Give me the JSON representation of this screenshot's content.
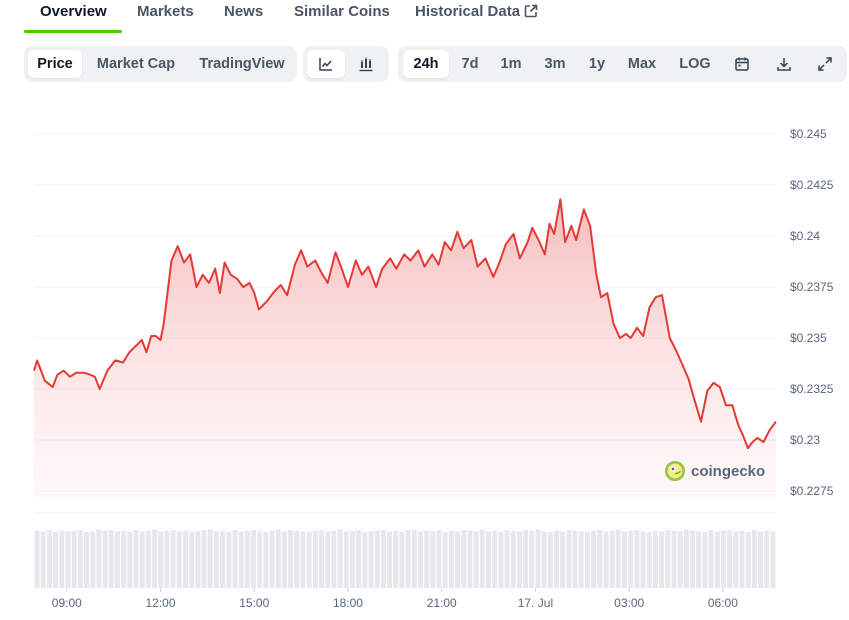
{
  "tabs": [
    {
      "label": "Overview",
      "active": true
    },
    {
      "label": "Markets"
    },
    {
      "label": "News"
    },
    {
      "label": "Similar Coins"
    },
    {
      "label": "Historical Data",
      "icon": "external-link-icon"
    }
  ],
  "toolbar": {
    "chart_types": [
      {
        "label": "Price",
        "selected": true
      },
      {
        "label": "Market Cap"
      },
      {
        "label": "TradingView"
      }
    ],
    "views": [
      {
        "icon": "line-chart-icon",
        "selected": true
      },
      {
        "icon": "candlestick-chart-icon"
      }
    ],
    "ranges": [
      {
        "label": "24h",
        "selected": true
      },
      {
        "label": "7d"
      },
      {
        "label": "1m"
      },
      {
        "label": "3m"
      },
      {
        "label": "1y"
      },
      {
        "label": "Max"
      },
      {
        "label": "LOG"
      }
    ],
    "actions": [
      {
        "icon": "calendar-icon"
      },
      {
        "icon": "download-icon"
      },
      {
        "icon": "expand-icon"
      }
    ]
  },
  "watermark": {
    "text": "coingecko",
    "icon": "coingecko-logo-icon"
  },
  "colors": {
    "line": "#e53935",
    "accent": "#4bcc00",
    "fill_top": "#f4a6a6"
  },
  "chart_data": {
    "type": "area",
    "x_ticks": [
      {
        "label": "09:00",
        "t": 9
      },
      {
        "label": "12:00",
        "t": 12
      },
      {
        "label": "15:00",
        "t": 15
      },
      {
        "label": "18:00",
        "t": 18
      },
      {
        "label": "21:00",
        "t": 21
      },
      {
        "label": "17. Jul",
        "t": 24
      },
      {
        "label": "03:00",
        "t": 27
      },
      {
        "label": "06:00",
        "t": 30
      }
    ],
    "y_ticks": [
      {
        "label": "$0.245",
        "v": 0.245
      },
      {
        "label": "$0.2425",
        "v": 0.2425
      },
      {
        "label": "$0.24",
        "v": 0.24
      },
      {
        "label": "$0.2375",
        "v": 0.2375
      },
      {
        "label": "$0.235",
        "v": 0.235
      },
      {
        "label": "$0.2325",
        "v": 0.2325
      },
      {
        "label": "$0.23",
        "v": 0.23
      },
      {
        "label": "$0.2275",
        "v": 0.2275
      }
    ],
    "xlim": [
      7.95,
      31.7
    ],
    "ylim": [
      0.2275,
      0.245
    ],
    "grid": true,
    "series": [
      {
        "x": [
          7.95,
          8.05,
          8.3,
          8.55,
          8.7,
          8.9,
          9.1,
          9.3,
          9.55,
          9.75,
          9.9,
          10.05,
          10.3,
          10.55,
          10.8,
          11.0,
          11.2,
          11.4,
          11.55,
          11.7,
          11.85,
          12.0,
          12.1,
          12.35,
          12.55,
          12.75,
          12.95,
          13.15,
          13.35,
          13.55,
          13.75,
          13.9,
          14.05,
          14.25,
          14.45,
          14.65,
          14.85,
          15.0,
          15.15,
          15.4,
          15.65,
          15.85,
          16.05,
          16.3,
          16.5,
          16.7,
          16.95,
          17.15,
          17.35,
          17.6,
          17.8,
          18.0,
          18.25,
          18.45,
          18.65,
          18.9,
          19.1,
          19.35,
          19.55,
          19.8,
          20.0,
          20.25,
          20.45,
          20.7,
          20.9,
          21.1,
          21.3,
          21.5,
          21.7,
          21.95,
          22.15,
          22.4,
          22.65,
          22.85,
          23.05,
          23.3,
          23.5,
          23.75,
          23.9,
          24.1,
          24.3,
          24.45,
          24.6,
          24.8,
          24.95,
          25.15,
          25.3,
          25.55,
          25.75,
          25.95,
          26.1,
          26.3,
          26.5,
          26.7,
          26.9,
          27.05,
          27.25,
          27.45,
          27.65,
          27.85,
          28.05,
          28.3,
          28.5,
          28.7,
          28.9,
          29.1,
          29.3,
          29.5,
          29.7,
          29.9,
          30.1,
          30.3,
          30.5,
          30.65,
          30.8,
          30.95,
          31.1,
          31.3,
          31.5,
          31.7
        ],
        "y": [
          0.2334,
          0.2339,
          0.2329,
          0.2326,
          0.2332,
          0.2334,
          0.2331,
          0.2333,
          0.2333,
          0.2332,
          0.2331,
          0.2325,
          0.2334,
          0.2339,
          0.2338,
          0.2343,
          0.2346,
          0.2349,
          0.2343,
          0.2351,
          0.2351,
          0.2349,
          0.2357,
          0.2388,
          0.2395,
          0.2387,
          0.2391,
          0.2375,
          0.2381,
          0.2377,
          0.2384,
          0.2372,
          0.2387,
          0.2381,
          0.2379,
          0.2375,
          0.2377,
          0.2372,
          0.2364,
          0.2368,
          0.2373,
          0.2376,
          0.2371,
          0.2386,
          0.2393,
          0.2385,
          0.2388,
          0.2382,
          0.2377,
          0.2392,
          0.2384,
          0.2375,
          0.2388,
          0.2381,
          0.2385,
          0.2375,
          0.2384,
          0.2389,
          0.2384,
          0.2391,
          0.2388,
          0.2393,
          0.2385,
          0.2391,
          0.2386,
          0.2397,
          0.2393,
          0.2402,
          0.2394,
          0.2398,
          0.2385,
          0.2389,
          0.238,
          0.2387,
          0.2396,
          0.2401,
          0.2389,
          0.2397,
          0.2404,
          0.2398,
          0.2391,
          0.2406,
          0.2401,
          0.2418,
          0.2397,
          0.2405,
          0.2398,
          0.2413,
          0.2405,
          0.2381,
          0.237,
          0.2372,
          0.2357,
          0.235,
          0.2352,
          0.235,
          0.2355,
          0.2351,
          0.2365,
          0.237,
          0.2371,
          0.235,
          0.2344,
          0.2337,
          0.233,
          0.2319,
          0.2309,
          0.2324,
          0.2328,
          0.2326,
          0.2317,
          0.2317,
          0.2307,
          0.2302,
          0.2296,
          0.2299,
          0.2301,
          0.2299,
          0.2305,
          0.2309
        ],
        "volumes": [
          0.91,
          0.9,
          0.92,
          0.89,
          0.91,
          0.9,
          0.91,
          0.92,
          0.89,
          0.9,
          0.93,
          0.91,
          0.92,
          0.9,
          0.91,
          0.89,
          0.92,
          0.9,
          0.91,
          0.93,
          0.9,
          0.91,
          0.92,
          0.9,
          0.91,
          0.89,
          0.9,
          0.92,
          0.93,
          0.9,
          0.91,
          0.89,
          0.92,
          0.9,
          0.91,
          0.92,
          0.9,
          0.89,
          0.91,
          0.93,
          0.9,
          0.92,
          0.91,
          0.9,
          0.89,
          0.91,
          0.92,
          0.9,
          0.91,
          0.93,
          0.9,
          0.91,
          0.92,
          0.89,
          0.9,
          0.91,
          0.92,
          0.9,
          0.91,
          0.89,
          0.92,
          0.93,
          0.9,
          0.91,
          0.9,
          0.92,
          0.89,
          0.91,
          0.9,
          0.92,
          0.91,
          0.9,
          0.93,
          0.9,
          0.91,
          0.89,
          0.92,
          0.91,
          0.9,
          0.92,
          0.91,
          0.93,
          0.9,
          0.89,
          0.91,
          0.9,
          0.92,
          0.91,
          0.9,
          0.89,
          0.91,
          0.92,
          0.9,
          0.91,
          0.93,
          0.9,
          0.91,
          0.92,
          0.9,
          0.89,
          0.91,
          0.9,
          0.92,
          0.91,
          0.9,
          0.93,
          0.91,
          0.9,
          0.89,
          0.92,
          0.9,
          0.91,
          0.92,
          0.9,
          0.91,
          0.89,
          0.92,
          0.9,
          0.91,
          0.9
        ]
      }
    ]
  }
}
